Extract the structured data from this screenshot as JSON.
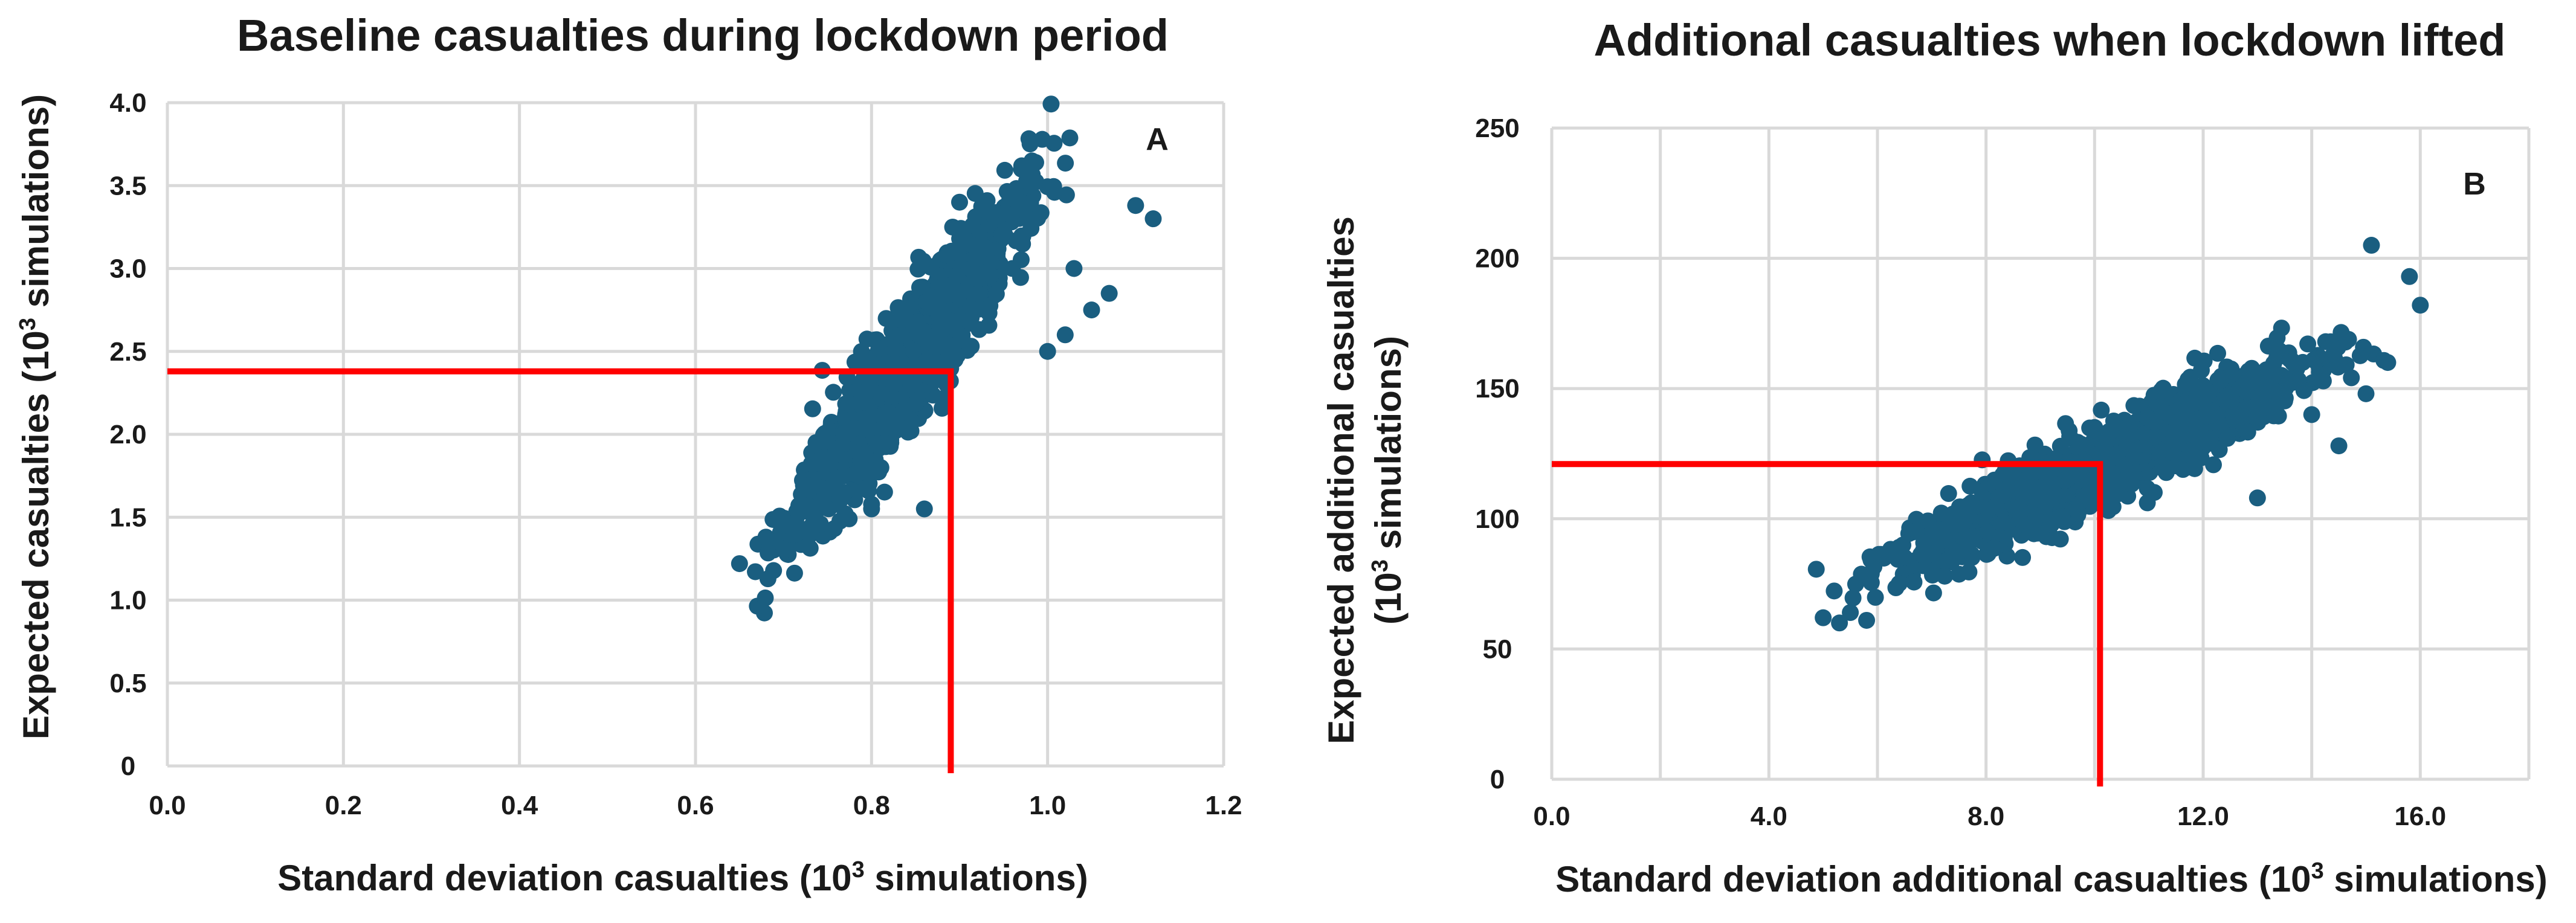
{
  "chart_data": [
    {
      "type": "scatter",
      "panel": "A",
      "title": "Baseline casualties during lockdown period",
      "xlabel_pre": "Standard deviation casualties (10",
      "xlabel_sup": "3",
      "xlabel_post": " simulations)",
      "ylabel_pre": "Expected casualties (10",
      "ylabel_sup": "3",
      "ylabel_post": "  simulations)",
      "xlim": [
        0,
        1.2
      ],
      "ylim": [
        0,
        4.0
      ],
      "xticks": [
        "0.0",
        "0.2",
        "0.4",
        "0.6",
        "0.8",
        "1.0",
        "1.2"
      ],
      "yticks": [
        "0",
        "0.5",
        "1.0",
        "1.5",
        "2.0",
        "2.5",
        "3.0",
        "3.5",
        "4.0"
      ],
      "color": "#1a5e80",
      "reference_lines": {
        "x": 0.89,
        "y": 2.38,
        "color": "#ff0000"
      },
      "cloud": {
        "n": 1400,
        "x_mean": 0.84,
        "x_sd": 0.06,
        "slope": 7.3,
        "intercept": -3.72,
        "noise": 0.18,
        "seed": 11
      },
      "outliers": [
        [
          0.65,
          1.22
        ],
        [
          0.68,
          1.38
        ],
        [
          0.7,
          1.45
        ],
        [
          0.72,
          1.58
        ],
        [
          0.8,
          1.55
        ],
        [
          0.86,
          1.55
        ],
        [
          0.96,
          3.0
        ],
        [
          1.0,
          2.5
        ],
        [
          1.02,
          2.6
        ],
        [
          1.03,
          3.0
        ],
        [
          1.05,
          2.75
        ],
        [
          1.07,
          2.85
        ],
        [
          1.1,
          3.38
        ],
        [
          1.12,
          3.3
        ],
        [
          0.9,
          3.4
        ],
        [
          0.93,
          3.35
        ]
      ]
    },
    {
      "type": "scatter",
      "panel": "B",
      "title": "Additional casualties when lockdown lifted",
      "xlabel_pre": "Standard deviation additional casualties (10",
      "xlabel_sup": "3",
      "xlabel_post": " simulations)",
      "ylabel_line1": "Expected additional casualties",
      "ylabel_pre": "(10",
      "ylabel_sup": "3",
      "ylabel_post": " simulations)",
      "xlim": [
        0,
        18
      ],
      "ylim": [
        0,
        250
      ],
      "xticks": [
        "0.0",
        "4.0",
        "8.0",
        "12.0",
        "16.0"
      ],
      "xtick_values": [
        0,
        4,
        8,
        12,
        16
      ],
      "yticks": [
        "0",
        "50",
        "100",
        "150",
        "200",
        "250"
      ],
      "color": "#1a5e80",
      "reference_lines": {
        "x": 10.1,
        "y": 121,
        "color": "#ff0000"
      },
      "cloud": {
        "n": 1600,
        "x_mean": 10.2,
        "x_sd": 1.7,
        "slope": 9.6,
        "intercept": 23,
        "noise": 7,
        "seed": 23
      },
      "outliers": [
        [
          5.0,
          62
        ],
        [
          5.3,
          60
        ],
        [
          5.5,
          64
        ],
        [
          5.8,
          61
        ],
        [
          13.0,
          108
        ],
        [
          14.0,
          140
        ],
        [
          14.5,
          128
        ],
        [
          15.0,
          148
        ],
        [
          15.1,
          205
        ],
        [
          15.4,
          160
        ],
        [
          15.8,
          193
        ],
        [
          16.0,
          182
        ]
      ]
    }
  ]
}
